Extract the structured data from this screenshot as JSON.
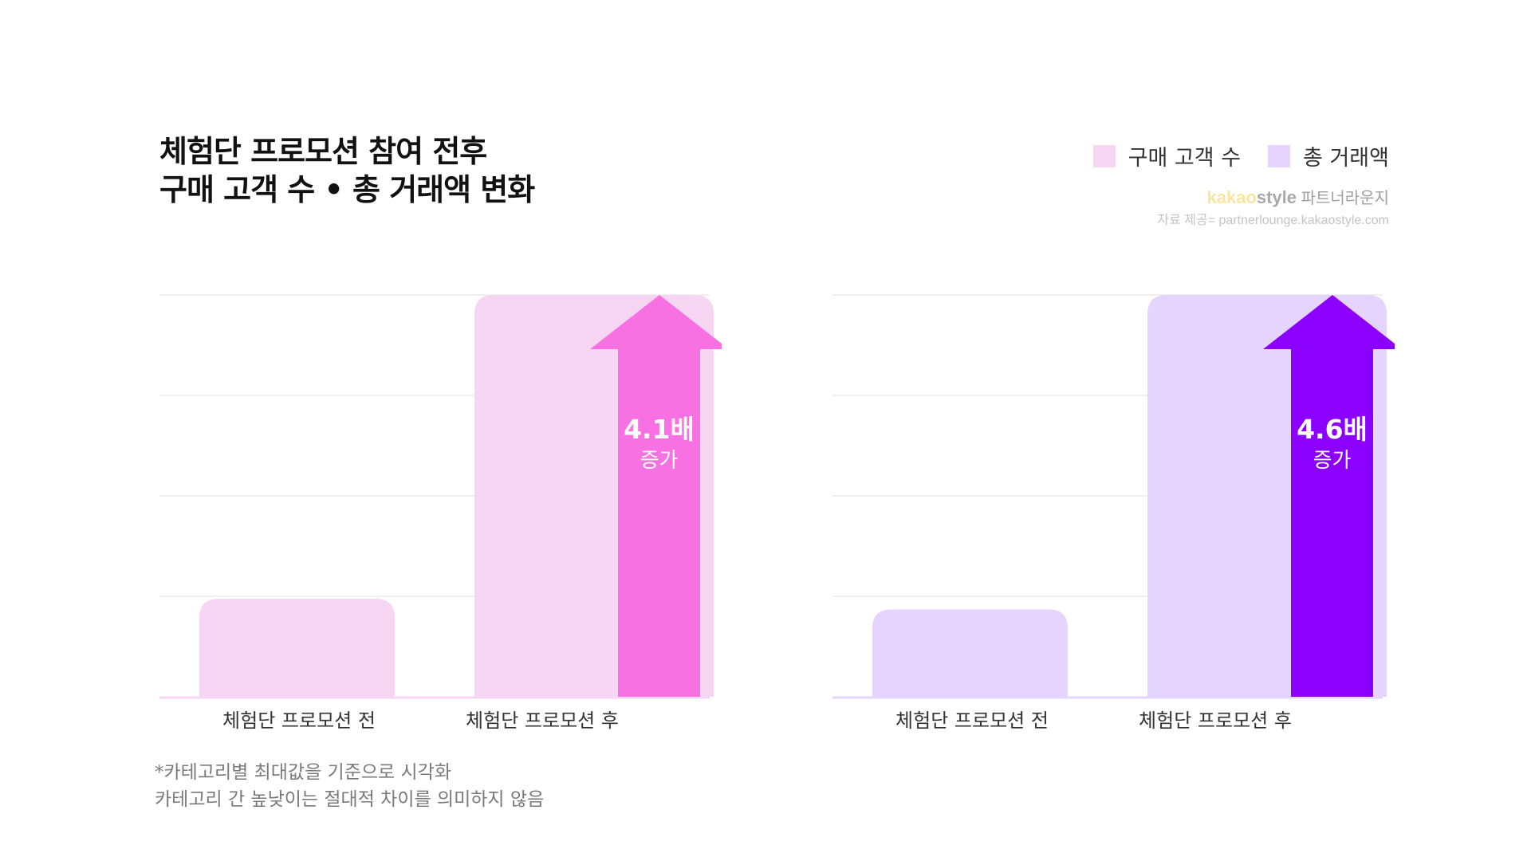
{
  "title": {
    "line1": "체험단 프로모션 참여 전후",
    "line2": "구매 고객 수 • 총 거래액 변화"
  },
  "legend": [
    {
      "label": "구매 고객 수",
      "color": "#f7d6f4"
    },
    {
      "label": "총 거래액",
      "color": "#e5d4fd"
    }
  ],
  "brand": {
    "logo_a": "kakao",
    "logo_b": "style",
    "suffix": " 파트너라운지",
    "source": "자료 제공= partnerlounge.kakaostyle.com"
  },
  "chart_data": [
    {
      "type": "bar",
      "categories": [
        "체험단 프로모션 전",
        "체험단 프로모션 후"
      ],
      "values": [
        1,
        4.1
      ],
      "ylim": [
        0,
        4.1
      ],
      "grid": true,
      "bar_color": "#f7d6f4",
      "baseline_color": "#f7d6f4",
      "arrow_color": "#f871e3",
      "annotation": {
        "value": "4.1배",
        "label": "증가"
      }
    },
    {
      "type": "bar",
      "categories": [
        "체험단 프로모션 전",
        "체험단 프로모션 후"
      ],
      "values": [
        1,
        4.6
      ],
      "ylim": [
        0,
        4.6
      ],
      "grid": true,
      "bar_color": "#e5d4fd",
      "baseline_color": "#e5d4fd",
      "arrow_color": "#8b00ff",
      "annotation": {
        "value": "4.6배",
        "label": "증가"
      }
    }
  ],
  "footnote": {
    "line1": "*카테고리별 최대값을 기준으로 시각화",
    "line2": "카테고리 간 높낮이는 절대적 차이를 의미하지 않음"
  }
}
